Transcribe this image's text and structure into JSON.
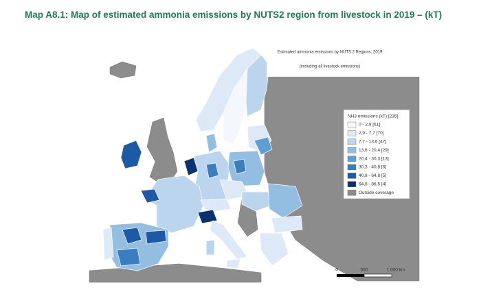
{
  "header": {
    "title": "Map A8.1: Map of estimated ammonia emissions by NUTS2 region from livestock in 2019 – (kT)"
  },
  "map": {
    "title": "Estimated ammonia emissions by NUTS 2 Regions, 2019",
    "subtitle": "(including all livestock emissions)",
    "legend": {
      "title": "NH3 emissions (kT) [235]",
      "items": [
        {
          "label": "0 - 2,9 [61]",
          "color": "#f4f8fd"
        },
        {
          "label": "2,9 - 7,7 [70]",
          "color": "#dde9f6"
        },
        {
          "label": "7,7 - 13,6 [47]",
          "color": "#bcd5ee"
        },
        {
          "label": "13,6 - 20,4 [29]",
          "color": "#94bde2"
        },
        {
          "label": "20,4 - 30,3 [13]",
          "color": "#5f9dd2"
        },
        {
          "label": "30,3 - 40,8 [6]",
          "color": "#3a7dc0"
        },
        {
          "label": "40,8 - 64,8 [5]",
          "color": "#1c5aa6"
        },
        {
          "label": "64,8 - 86,5 [4]",
          "color": "#0a3270"
        },
        {
          "label": "Outside coverage",
          "color": "#8c8c8c"
        }
      ]
    },
    "scale_bar": {
      "labels": [
        "0",
        "500",
        "1 000 km"
      ]
    }
  }
}
